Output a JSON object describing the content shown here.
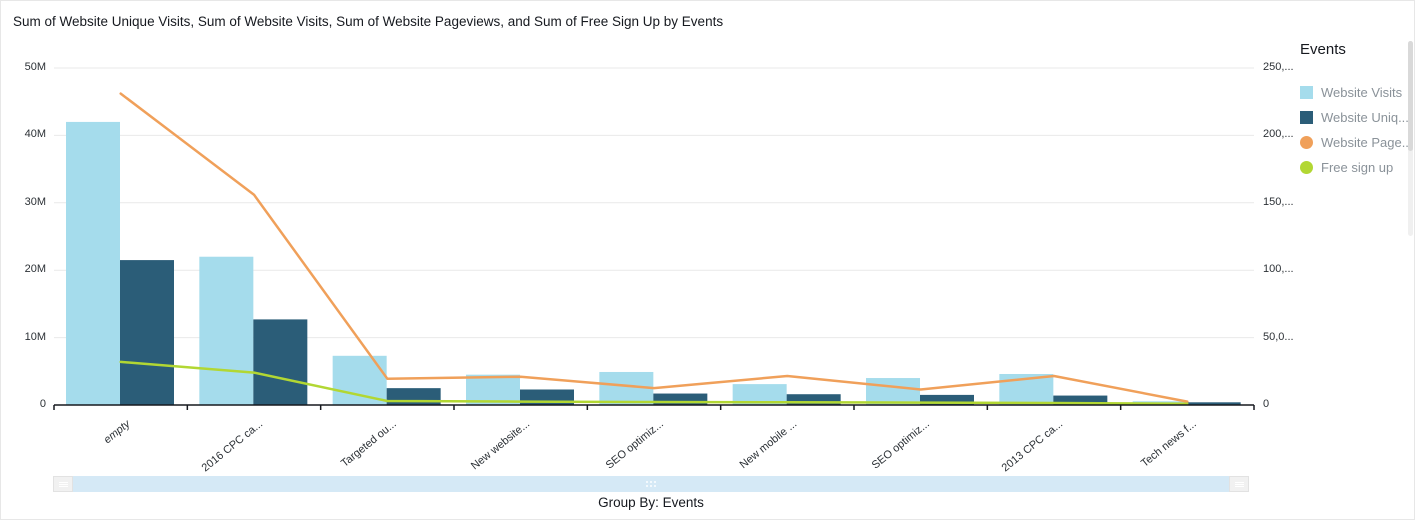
{
  "title": "Sum of Website Unique Visits, Sum of Website Visits, Sum of Website Pageviews, and Sum of Free Sign Up by Events",
  "legend": {
    "title": "Events",
    "items": [
      {
        "key": "website-visits",
        "label": "Website Visits",
        "color": "#a5dcec",
        "shape": "square"
      },
      {
        "key": "website-unique-visits",
        "label": "Website Uniq...",
        "color": "#2b5d78",
        "shape": "square"
      },
      {
        "key": "website-pageviews",
        "label": "Website Page...",
        "color": "#f0a05a",
        "shape": "circle"
      },
      {
        "key": "free-sign-up",
        "label": "Free sign up",
        "color": "#b2d733",
        "shape": "circle"
      }
    ]
  },
  "footer": {
    "group_by_label": "Group By: Events"
  },
  "chart_data": {
    "type": "combo-bar-line",
    "title": "Sum of Website Unique Visits, Sum of Website Visits, Sum of Website Pageviews, and Sum of Free Sign Up by Events",
    "categories": [
      {
        "label": "empty",
        "italic": true
      },
      {
        "label": "2016 CPC ca...",
        "italic": false
      },
      {
        "label": "Targeted ou...",
        "italic": false
      },
      {
        "label": "New website...",
        "italic": false
      },
      {
        "label": "SEO optimiz...",
        "italic": false
      },
      {
        "label": "New mobile ...",
        "italic": false
      },
      {
        "label": "SEO optimiz...",
        "italic": false
      },
      {
        "label": "2013 CPC ca...",
        "italic": false
      },
      {
        "label": "Tech news f...",
        "italic": false
      }
    ],
    "series": [
      {
        "key": "website-visits",
        "name": "Sum of Website Visits",
        "type": "bar",
        "axis": "left",
        "color": "#a5dcec",
        "values": [
          42000000,
          22000000,
          7300000,
          4500000,
          4900000,
          3100000,
          4000000,
          4600000,
          550000
        ]
      },
      {
        "key": "website-unique-visits",
        "name": "Sum of Website Unique Visits",
        "type": "bar",
        "axis": "left",
        "color": "#2b5d78",
        "values": [
          21500000,
          12700000,
          2500000,
          2300000,
          1700000,
          1600000,
          1500000,
          1400000,
          400000
        ]
      },
      {
        "key": "website-pageviews",
        "name": "Sum of Website Pageviews",
        "type": "line",
        "axis": "right",
        "color": "#f0a05a",
        "values": [
          231000,
          156000,
          19500,
          21000,
          12500,
          21500,
          11500,
          21500,
          2500
        ]
      },
      {
        "key": "free-sign-up",
        "name": "Sum of Free Sign Up",
        "type": "line",
        "axis": "right",
        "color": "#b2d733",
        "values": [
          32000,
          24000,
          3000,
          2500,
          2200,
          2000,
          1800,
          1500,
          1000
        ]
      }
    ],
    "left_axis": {
      "max": 50000000,
      "ticks": [
        "0",
        "10M",
        "20M",
        "30M",
        "40M",
        "50M"
      ]
    },
    "right_axis": {
      "max": 250000,
      "ticks": [
        "0",
        "50,0...",
        "100,...",
        "150,...",
        "200,...",
        "250,..."
      ]
    },
    "grid": true,
    "legend_position": "right",
    "xlabel": "",
    "ylabel": ""
  }
}
